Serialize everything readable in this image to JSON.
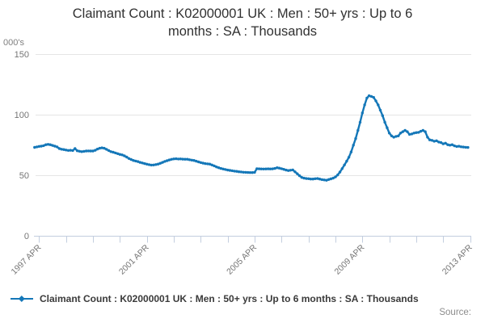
{
  "title": "Claimant Count : K02000001 UK : Men : 50+ yrs : Up to 6 months : SA : Thousands",
  "source_label": "Source:",
  "chart_data": {
    "type": "line",
    "title": "Claimant Count : K02000001 UK : Men : 50+ yrs : Up to 6 months : SA : Thousands",
    "ylabel": "000's",
    "ylim": [
      0,
      150
    ],
    "y_ticks": [
      0,
      50,
      100,
      150
    ],
    "x_tick_labels": [
      "1997 APR",
      "2001 APR",
      "2005 APR",
      "2009 APR",
      "2013 APR"
    ],
    "x_minor_ticks_years": [
      "1997",
      "1998",
      "1999",
      "2000",
      "2001",
      "2002",
      "2003",
      "2004",
      "2005",
      "2006",
      "2007",
      "2008",
      "2009",
      "2010",
      "2011",
      "2012",
      "2013"
    ],
    "grid": "horizontal",
    "legend_position": "bottom-left",
    "series": [
      {
        "name": "Claimant Count : K02000001 UK : Men : 50+ yrs : Up to 6 months : SA : Thousands",
        "color": "#1477b8",
        "start_month": "1997-02",
        "frequency": "monthly",
        "values": [
          73.0,
          73.4,
          73.8,
          74.0,
          74.4,
          75.2,
          75.5,
          75.2,
          74.6,
          74.0,
          73.4,
          72.0,
          71.5,
          71.2,
          70.8,
          70.5,
          70.6,
          70.4,
          72.0,
          70.2,
          69.8,
          69.5,
          69.7,
          70.0,
          70.1,
          70.0,
          70.0,
          70.6,
          71.6,
          72.3,
          72.6,
          72.3,
          71.4,
          70.4,
          69.5,
          69.0,
          68.4,
          67.8,
          67.2,
          66.8,
          66.0,
          65.0,
          63.8,
          63.0,
          62.2,
          61.7,
          61.3,
          60.6,
          60.1,
          59.6,
          59.1,
          58.7,
          58.4,
          58.5,
          58.8,
          59.2,
          59.9,
          60.6,
          61.4,
          62.0,
          62.6,
          63.1,
          63.5,
          63.6,
          63.4,
          63.5,
          63.3,
          63.2,
          63.2,
          62.8,
          62.5,
          62.2,
          61.6,
          61.0,
          60.5,
          60.0,
          59.6,
          59.4,
          59.2,
          58.5,
          57.7,
          56.9,
          56.2,
          55.6,
          55.1,
          54.7,
          54.3,
          54.0,
          53.7,
          53.4,
          53.2,
          52.9,
          52.7,
          52.5,
          52.4,
          52.3,
          52.2,
          52.2,
          52.4,
          55.4,
          55.3,
          55.2,
          55.1,
          55.2,
          55.3,
          55.2,
          55.3,
          55.6,
          56.2,
          55.9,
          55.4,
          54.9,
          54.3,
          53.9,
          54.1,
          54.4,
          52.8,
          51.2,
          49.6,
          48.2,
          47.6,
          47.3,
          47.1,
          46.9,
          46.9,
          47.1,
          47.3,
          46.9,
          46.4,
          46.1,
          45.9,
          46.5,
          47.0,
          47.6,
          48.6,
          50.3,
          52.6,
          55.5,
          58.5,
          61.6,
          64.8,
          69.2,
          74.8,
          80.3,
          87.0,
          93.7,
          101.4,
          108.1,
          113.7,
          115.6,
          115.1,
          114.3,
          111.4,
          108.1,
          103.7,
          99.2,
          93.7,
          89.2,
          84.8,
          82.5,
          81.4,
          82.1,
          82.5,
          84.8,
          85.9,
          87.0,
          85.9,
          83.7,
          84.1,
          84.8,
          85.2,
          85.4,
          86.3,
          87.0,
          85.9,
          81.4,
          79.2,
          78.8,
          78.1,
          78.5,
          77.4,
          77.0,
          75.9,
          76.5,
          75.2,
          74.8,
          75.2,
          74.3,
          73.7,
          73.9,
          73.5,
          73.3,
          73.1,
          72.9
        ]
      }
    ]
  }
}
